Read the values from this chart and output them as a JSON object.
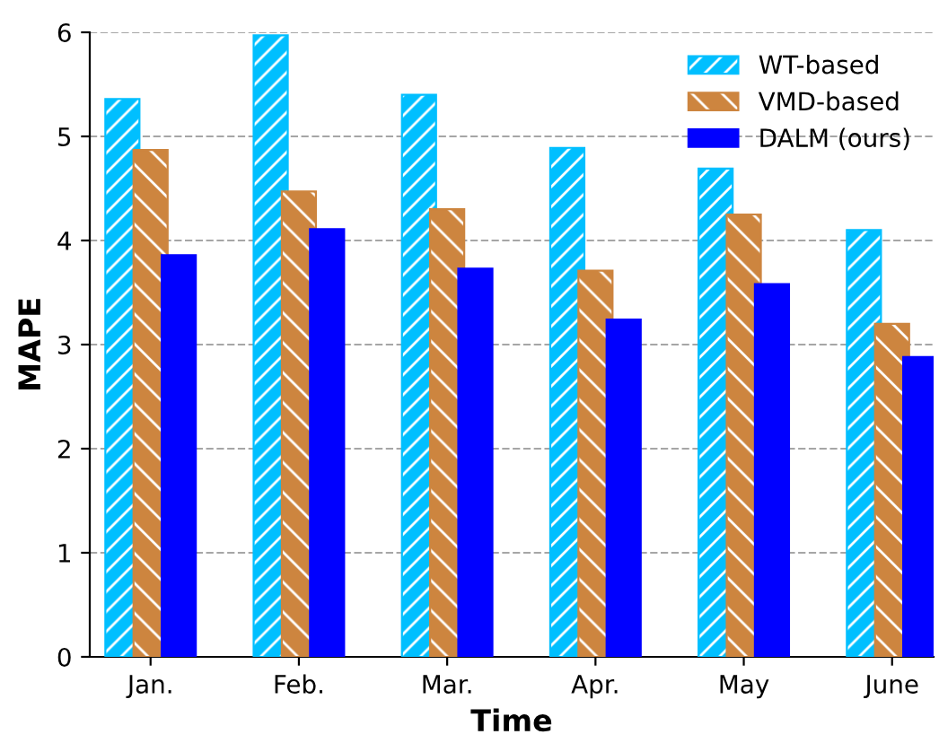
{
  "chart_data": {
    "type": "bar",
    "xlabel": "Time",
    "ylabel": "MAPE",
    "categories": [
      "Jan.",
      "Feb.",
      "Mar.",
      "Apr.",
      "May",
      "June"
    ],
    "series": [
      {
        "name": "WT-based",
        "color": "#00bfff",
        "values": [
          5.36,
          5.97,
          5.4,
          4.89,
          4.69,
          4.1
        ]
      },
      {
        "name": "VMD-based",
        "color": "#cd853f",
        "values": [
          4.87,
          4.47,
          4.3,
          3.71,
          4.25,
          3.2
        ]
      },
      {
        "name": "DALM (ours)",
        "color": "#0000ff",
        "values": [
          3.86,
          4.11,
          3.73,
          3.24,
          3.58,
          2.88
        ]
      }
    ],
    "ylim": [
      0,
      6
    ],
    "yticks": [
      0,
      1,
      2,
      3,
      4,
      5,
      6
    ],
    "grid": "y",
    "legend": "top right"
  }
}
